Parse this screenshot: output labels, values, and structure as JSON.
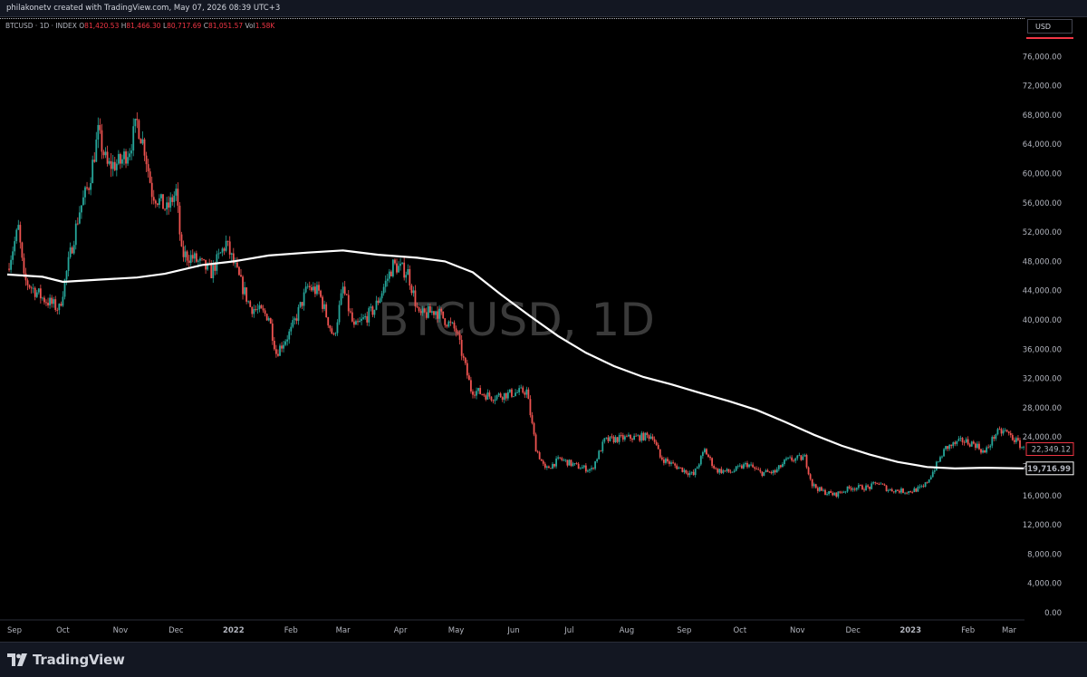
{
  "header": {
    "credit": "philakonetv created with TradingView.com, May 07, 2026 08:39 UTC+3"
  },
  "legend": {
    "symbol": "BTCUSD · 1D · INDEX",
    "open_label": "O",
    "open": "81,420.53",
    "high_label": "H",
    "high": "81,466.30",
    "low_label": "L",
    "low": "80,717.69",
    "close_label": "C",
    "close": "81,051.57",
    "vol_label": "Vol",
    "vol": "1.58K"
  },
  "currency": "USD",
  "watermark": "BTCUSD, 1D",
  "footer": {
    "brand": "TradingView"
  },
  "colors": {
    "up": "#26a69a",
    "down": "#ef5350",
    "ma_line": "#ffffff",
    "price_tag": "#f23645"
  },
  "icons": {
    "brand_logo": "tradingview-logo-icon"
  },
  "chart_data": {
    "type": "candlestick",
    "series": [
      {
        "name": "BTCUSD",
        "kind": "candlestick"
      },
      {
        "name": "moving average",
        "kind": "line"
      }
    ],
    "ylim": [
      0,
      80000
    ],
    "ytick_values": [
      0,
      4000,
      8000,
      12000,
      16000,
      20000,
      24000,
      28000,
      32000,
      36000,
      40000,
      44000,
      48000,
      52000,
      56000,
      60000,
      64000,
      68000,
      72000,
      76000
    ],
    "ytick_labels": [
      "0.00",
      "4,000.00",
      "8,000.00",
      "12,000.00",
      "16,000.00",
      "20,000.00",
      "24,000.00",
      "28,000.00",
      "32,000.00",
      "36,000.00",
      "40,000.00",
      "44,000.00",
      "48,000.00",
      "52,000.00",
      "56,000.00",
      "60,000.00",
      "64,000.00",
      "68,000.00",
      "72,000.00",
      "76,000.00"
    ],
    "x_dates": [
      "2021-09-01",
      "2021-10-01",
      "2021-11-01",
      "2021-12-01",
      "2022-01-01",
      "2022-02-01",
      "2022-03-01",
      "2022-04-01",
      "2022-05-01",
      "2022-06-01",
      "2022-07-01",
      "2022-08-01",
      "2022-09-01",
      "2022-10-01",
      "2022-11-01",
      "2022-12-01",
      "2023-01-01",
      "2023-02-01",
      "2023-03-01"
    ],
    "x_labels": [
      "Sep",
      "Oct",
      "Nov",
      "Dec",
      "2022",
      "Feb",
      "Mar",
      "Apr",
      "May",
      "Jun",
      "Jul",
      "Aug",
      "Sep",
      "Oct",
      "Nov",
      "Dec",
      "2023",
      "Feb",
      "Mar"
    ],
    "x_bold_labels": [
      "2022",
      "2023"
    ],
    "price_path": [
      [
        "2021-09-01",
        47000
      ],
      [
        "2021-09-07",
        52500
      ],
      [
        "2021-09-10",
        45500
      ],
      [
        "2021-09-20",
        43000
      ],
      [
        "2021-09-29",
        41500
      ],
      [
        "2021-10-05",
        49000
      ],
      [
        "2021-10-10",
        55000
      ],
      [
        "2021-10-15",
        58500
      ],
      [
        "2021-10-20",
        65500
      ],
      [
        "2021-10-25",
        61000
      ],
      [
        "2021-11-01",
        61500
      ],
      [
        "2021-11-06",
        63500
      ],
      [
        "2021-11-10",
        67000
      ],
      [
        "2021-11-14",
        63500
      ],
      [
        "2021-11-18",
        57500
      ],
      [
        "2021-11-26",
        55000
      ],
      [
        "2021-12-01",
        57500
      ],
      [
        "2021-12-04",
        49000
      ],
      [
        "2021-12-10",
        48500
      ],
      [
        "2021-12-20",
        46500
      ],
      [
        "2021-12-28",
        50500
      ],
      [
        "2022-01-05",
        45000
      ],
      [
        "2022-01-10",
        41800
      ],
      [
        "2022-01-20",
        40500
      ],
      [
        "2022-01-24",
        35500
      ],
      [
        "2022-02-01",
        38500
      ],
      [
        "2022-02-10",
        44500
      ],
      [
        "2022-02-16",
        43800
      ],
      [
        "2022-02-24",
        37500
      ],
      [
        "2022-03-01",
        44300
      ],
      [
        "2022-03-07",
        38800
      ],
      [
        "2022-03-18",
        41500
      ],
      [
        "2022-03-28",
        47500
      ],
      [
        "2022-04-05",
        46500
      ],
      [
        "2022-04-11",
        40500
      ],
      [
        "2022-04-20",
        41300
      ],
      [
        "2022-05-01",
        38500
      ],
      [
        "2022-05-09",
        30500
      ],
      [
        "2022-05-20",
        29500
      ],
      [
        "2022-06-01",
        30000
      ],
      [
        "2022-06-08",
        30300
      ],
      [
        "2022-06-13",
        22500
      ],
      [
        "2022-06-18",
        19500
      ],
      [
        "2022-06-26",
        21000
      ],
      [
        "2022-07-05",
        20000
      ],
      [
        "2022-07-13",
        19500
      ],
      [
        "2022-07-20",
        23500
      ],
      [
        "2022-07-28",
        23800
      ],
      [
        "2022-08-08",
        24000
      ],
      [
        "2022-08-15",
        24200
      ],
      [
        "2022-08-19",
        21200
      ],
      [
        "2022-08-26",
        20200
      ],
      [
        "2022-09-06",
        18800
      ],
      [
        "2022-09-12",
        22200
      ],
      [
        "2022-09-18",
        19500
      ],
      [
        "2022-09-26",
        19200
      ],
      [
        "2022-10-05",
        20300
      ],
      [
        "2022-10-12",
        19100
      ],
      [
        "2022-10-20",
        19200
      ],
      [
        "2022-10-26",
        20800
      ],
      [
        "2022-11-05",
        21200
      ],
      [
        "2022-11-09",
        17500
      ],
      [
        "2022-11-14",
        16600
      ],
      [
        "2022-11-21",
        16100
      ],
      [
        "2022-11-30",
        17100
      ],
      [
        "2022-12-10",
        17100
      ],
      [
        "2022-12-14",
        17800
      ],
      [
        "2022-12-20",
        16800
      ],
      [
        "2022-12-31",
        16550
      ],
      [
        "2023-01-08",
        17100
      ],
      [
        "2023-01-12",
        18800
      ],
      [
        "2023-01-20",
        22500
      ],
      [
        "2023-01-29",
        23500
      ],
      [
        "2023-02-05",
        23000
      ],
      [
        "2023-02-10",
        21800
      ],
      [
        "2023-02-16",
        24500
      ],
      [
        "2023-02-21",
        24800
      ],
      [
        "2023-02-28",
        23200
      ],
      [
        "2023-03-03",
        22349.12
      ]
    ],
    "ma_path": [
      [
        "2021-09-01",
        46200
      ],
      [
        "2021-09-20",
        45900
      ],
      [
        "2021-10-01",
        45200
      ],
      [
        "2021-10-20",
        45500
      ],
      [
        "2021-11-10",
        45800
      ],
      [
        "2021-11-25",
        46300
      ],
      [
        "2021-12-15",
        47500
      ],
      [
        "2022-01-01",
        48000
      ],
      [
        "2022-01-20",
        48800
      ],
      [
        "2022-02-10",
        49200
      ],
      [
        "2022-03-01",
        49500
      ],
      [
        "2022-03-20",
        48900
      ],
      [
        "2022-04-10",
        48500
      ],
      [
        "2022-04-25",
        48000
      ],
      [
        "2022-05-10",
        46500
      ],
      [
        "2022-05-25",
        43500
      ],
      [
        "2022-06-10",
        40500
      ],
      [
        "2022-06-25",
        37800
      ],
      [
        "2022-07-10",
        35500
      ],
      [
        "2022-07-25",
        33700
      ],
      [
        "2022-08-10",
        32200
      ],
      [
        "2022-08-25",
        31200
      ],
      [
        "2022-09-10",
        30000
      ],
      [
        "2022-09-25",
        28900
      ],
      [
        "2022-10-10",
        27700
      ],
      [
        "2022-10-25",
        26100
      ],
      [
        "2022-11-10",
        24300
      ],
      [
        "2022-11-25",
        22800
      ],
      [
        "2022-12-10",
        21600
      ],
      [
        "2022-12-25",
        20600
      ],
      [
        "2023-01-10",
        19900
      ],
      [
        "2023-01-25",
        19700
      ],
      [
        "2023-02-10",
        19800
      ],
      [
        "2023-03-03",
        19716.99
      ]
    ],
    "last_price": 22349.12,
    "last_price_label": "22,349.12",
    "ma_value": 19716.99,
    "ma_value_label": "19,716.99"
  }
}
